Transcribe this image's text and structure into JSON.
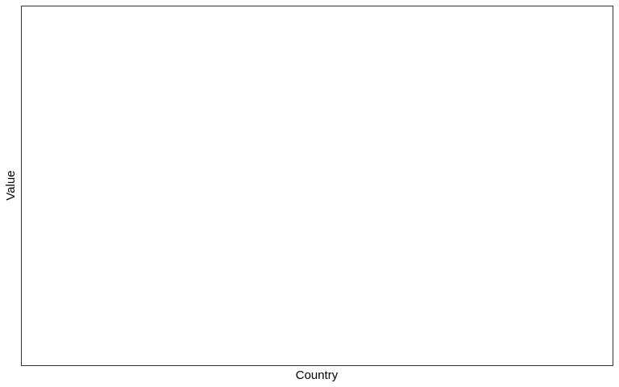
{
  "chart_data": {
    "type": "bar",
    "title": "",
    "xlabel": "Country",
    "ylabel": "Value",
    "categories": [],
    "series": [],
    "grid": false,
    "legend": "none"
  },
  "colors": {
    "panel_border": "#333333",
    "background": "#ffffff",
    "text": "#000000"
  }
}
